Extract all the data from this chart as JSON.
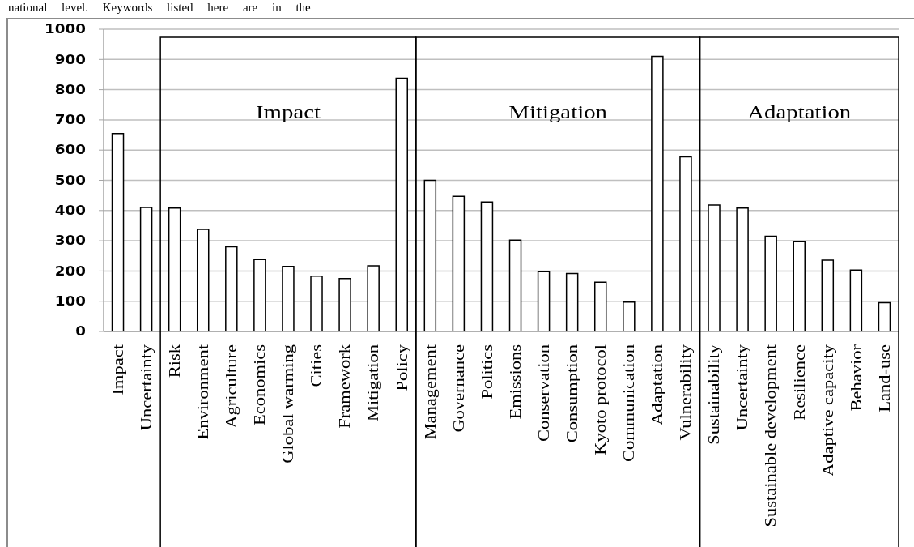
{
  "chart_data": {
    "type": "bar",
    "categories": [
      "Impact",
      "Uncertainty",
      "Risk",
      "Environment",
      "Agriculture",
      "Economics",
      "Global warming",
      "Cities",
      "Framework",
      "Mitigation",
      "Policy",
      "Management",
      "Governance",
      "Politics",
      "Emissions",
      "Conservation",
      "Consumption",
      "Kyoto protocol",
      "Communication",
      "Adaptation",
      "Vulnerability",
      "Sustainability",
      "Uncertainty",
      "Sustainable development",
      "Resilience",
      "Adaptive capacity",
      "Behavior",
      "Land-use"
    ],
    "values": [
      655,
      410,
      408,
      338,
      280,
      238,
      215,
      183,
      175,
      217,
      838,
      500,
      447,
      428,
      302,
      198,
      192,
      163,
      97,
      910,
      578,
      418,
      408,
      315,
      297,
      236,
      203,
      95
    ],
    "color": "#ffffff",
    "ylim": [
      0,
      1000
    ],
    "yticks": [
      0,
      100,
      200,
      300,
      400,
      500,
      600,
      700,
      800,
      900,
      1000
    ],
    "grid": "y",
    "annotations": [
      "national level. Keywords listed here are in the",
      "Impact",
      "Mitigation",
      "Adaptation"
    ]
  }
}
